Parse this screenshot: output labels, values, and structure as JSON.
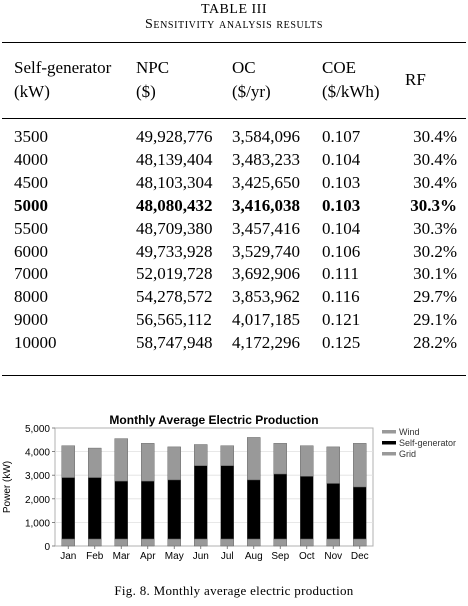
{
  "table": {
    "title": "TABLE III",
    "subtitle": "Sensitivity analysis results",
    "headers": [
      {
        "line1": "Self-generator",
        "line2": "(kW)"
      },
      {
        "line1": "NPC",
        "line2": "($)"
      },
      {
        "line1": "OC",
        "line2": "($/yr)"
      },
      {
        "line1": "COE",
        "line2": "($/kWh)"
      },
      {
        "line1": "RF",
        "line2": ""
      }
    ],
    "rows": [
      [
        "3500",
        "49,928,776",
        "3,584,096",
        "0.107",
        "30.4%"
      ],
      [
        "4000",
        "48,139,404",
        "3,483,233",
        "0.104",
        "30.4%"
      ],
      [
        "4500",
        "48,103,304",
        "3,425,650",
        "0.103",
        "30.4%"
      ],
      [
        "5000",
        "48,080,432",
        "3,416,038",
        "0.103",
        "30.3%"
      ],
      [
        "5500",
        "48,709,380",
        "3,457,416",
        "0.104",
        "30.3%"
      ],
      [
        "6000",
        "49,733,928",
        "3,529,740",
        "0.106",
        "30.2%"
      ],
      [
        "7000",
        "52,019,728",
        "3,692,906",
        "0.111",
        "30.1%"
      ],
      [
        "8000",
        "54,278,572",
        "3,853,962",
        "0.116",
        "29.7%"
      ],
      [
        "9000",
        "56,565,112",
        "4,017,185",
        "0.121",
        "29.1%"
      ],
      [
        "10000",
        "58,747,948",
        "4,172,296",
        "0.125",
        "28.2%"
      ]
    ],
    "bold_row_index": 3
  },
  "chart_data": {
    "type": "bar",
    "stacked": true,
    "title": "Monthly Average Electric Production",
    "xlabel": "",
    "ylabel": "Power (kW)",
    "ylim": [
      0,
      5000
    ],
    "yticks": [
      "0",
      "1,000",
      "2,000",
      "3,000",
      "4,000",
      "5,000"
    ],
    "ytick_values": [
      0,
      1000,
      2000,
      3000,
      4000,
      5000
    ],
    "categories": [
      "Jan",
      "Feb",
      "Mar",
      "Apr",
      "May",
      "Jun",
      "Jul",
      "Aug",
      "Sep",
      "Oct",
      "Nov",
      "Dec"
    ],
    "series": [
      {
        "name": "Grid",
        "color": "#999999",
        "values": [
          300,
          300,
          300,
          300,
          300,
          300,
          300,
          300,
          300,
          300,
          300,
          300
        ]
      },
      {
        "name": "Self-generator",
        "color": "#000000",
        "values": [
          2600,
          2600,
          2450,
          2450,
          2500,
          3100,
          3100,
          2500,
          2750,
          2650,
          2350,
          2200
        ]
      },
      {
        "name": "Wind",
        "color": "#999999",
        "values": [
          1350,
          1250,
          1800,
          1600,
          1400,
          900,
          850,
          1800,
          1300,
          1300,
          1550,
          1850
        ]
      }
    ],
    "legend": [
      "Wind",
      "Self-generator",
      "Grid"
    ],
    "legend_colors": [
      "#999999",
      "#000000",
      "#999999"
    ],
    "legend_position": "right"
  },
  "figure": {
    "caption": "Fig. 8.   Monthly average electric production"
  }
}
